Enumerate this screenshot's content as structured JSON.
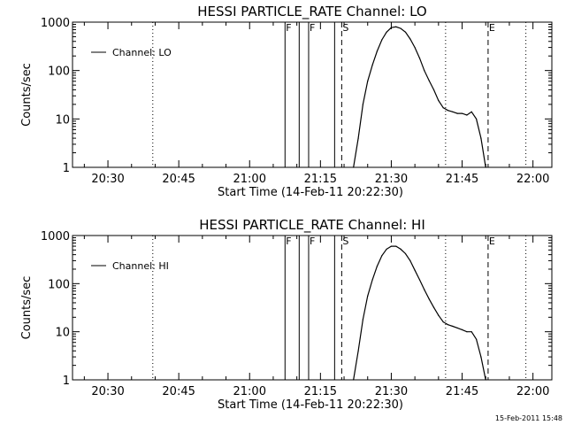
{
  "footer": {
    "timestamp": "15-Feb-2011 15:48"
  },
  "chart_data": [
    {
      "type": "line",
      "title": "HESSI PARTICLE_RATE Channel: LO",
      "xlabel": "Start Time (14-Feb-11 20:22:30)",
      "ylabel": "Counts/sec",
      "y_scale": "log",
      "ylim": [
        1,
        1000
      ],
      "y_ticks": [
        1,
        10,
        100,
        1000
      ],
      "y_tick_labels": [
        "1",
        "10",
        "100",
        "1000"
      ],
      "x_unit": "minutes",
      "xlim": [
        "20:22:30",
        "22:04:00"
      ],
      "x_ticks": [
        "20:30",
        "20:45",
        "21:00",
        "21:15",
        "21:30",
        "21:45",
        "22:00"
      ],
      "grid": false,
      "legend": {
        "placement": "top-left",
        "entries": [
          "Channel: LO"
        ]
      },
      "series": [
        {
          "name": "Channel: LO",
          "x": [
            "21:22:00",
            "21:23:00",
            "21:24:00",
            "21:25:00",
            "21:26:00",
            "21:27:00",
            "21:28:00",
            "21:29:00",
            "21:30:00",
            "21:31:00",
            "21:32:00",
            "21:33:00",
            "21:34:00",
            "21:35:00",
            "21:36:00",
            "21:37:00",
            "21:38:00",
            "21:39:00",
            "21:40:00",
            "21:41:00",
            "21:42:00",
            "21:43:00",
            "21:44:00",
            "21:45:00",
            "21:46:00",
            "21:47:00",
            "21:48:00",
            "21:49:00",
            "21:50:00"
          ],
          "values": [
            1,
            4,
            20,
            60,
            130,
            250,
            430,
            620,
            770,
            800,
            740,
            620,
            450,
            300,
            180,
            100,
            62,
            40,
            24,
            17,
            15,
            14,
            13,
            13,
            12,
            14,
            10,
            4,
            1
          ]
        }
      ],
      "markers": [
        {
          "label": "F",
          "time": "21:07:30",
          "style": "solid"
        },
        {
          "label": "",
          "time": "21:10:30",
          "style": "solid"
        },
        {
          "label": "F",
          "time": "21:12:30",
          "style": "solid"
        },
        {
          "label": "",
          "time": "21:18:00",
          "style": "solid"
        },
        {
          "label": "S",
          "time": "21:19:30",
          "style": "dashed"
        },
        {
          "label": "E",
          "time": "21:50:30",
          "style": "dashed"
        },
        {
          "label": "",
          "time": "20:39:30",
          "style": "dotted"
        },
        {
          "label": "",
          "time": "21:41:30",
          "style": "dotted"
        },
        {
          "label": "",
          "time": "21:58:30",
          "style": "dotted"
        }
      ]
    },
    {
      "type": "line",
      "title": "HESSI PARTICLE_RATE Channel: HI",
      "xlabel": "Start Time (14-Feb-11 20:22:30)",
      "ylabel": "Counts/sec",
      "y_scale": "log",
      "ylim": [
        1,
        1000
      ],
      "y_ticks": [
        1,
        10,
        100,
        1000
      ],
      "y_tick_labels": [
        "1",
        "10",
        "100",
        "1000"
      ],
      "x_unit": "minutes",
      "xlim": [
        "20:22:30",
        "22:04:00"
      ],
      "x_ticks": [
        "20:30",
        "20:45",
        "21:00",
        "21:15",
        "21:30",
        "21:45",
        "22:00"
      ],
      "grid": false,
      "legend": {
        "placement": "top-left",
        "entries": [
          "Channel: HI"
        ]
      },
      "series": [
        {
          "name": "Channel: HI",
          "x": [
            "21:22:00",
            "21:23:00",
            "21:24:00",
            "21:25:00",
            "21:26:00",
            "21:27:00",
            "21:28:00",
            "21:29:00",
            "21:30:00",
            "21:31:00",
            "21:32:00",
            "21:33:00",
            "21:34:00",
            "21:35:00",
            "21:36:00",
            "21:37:00",
            "21:38:00",
            "21:39:00",
            "21:40:00",
            "21:41:00",
            "21:42:00",
            "21:43:00",
            "21:44:00",
            "21:45:00",
            "21:46:00",
            "21:47:00",
            "21:48:00",
            "21:49:00",
            "21:50:00"
          ],
          "values": [
            1,
            4,
            18,
            55,
            120,
            230,
            380,
            520,
            600,
            600,
            520,
            420,
            300,
            190,
            120,
            75,
            48,
            32,
            22,
            16,
            14,
            13,
            12,
            11,
            10,
            10,
            7,
            3,
            1
          ]
        }
      ],
      "markers": [
        {
          "label": "F",
          "time": "21:07:30",
          "style": "solid"
        },
        {
          "label": "",
          "time": "21:10:30",
          "style": "solid"
        },
        {
          "label": "F",
          "time": "21:12:30",
          "style": "solid"
        },
        {
          "label": "",
          "time": "21:18:00",
          "style": "solid"
        },
        {
          "label": "S",
          "time": "21:19:30",
          "style": "dashed"
        },
        {
          "label": "E",
          "time": "21:50:30",
          "style": "dashed"
        },
        {
          "label": "",
          "time": "20:39:30",
          "style": "dotted"
        },
        {
          "label": "",
          "time": "21:41:30",
          "style": "dotted"
        },
        {
          "label": "",
          "time": "21:58:30",
          "style": "dotted"
        }
      ]
    }
  ]
}
